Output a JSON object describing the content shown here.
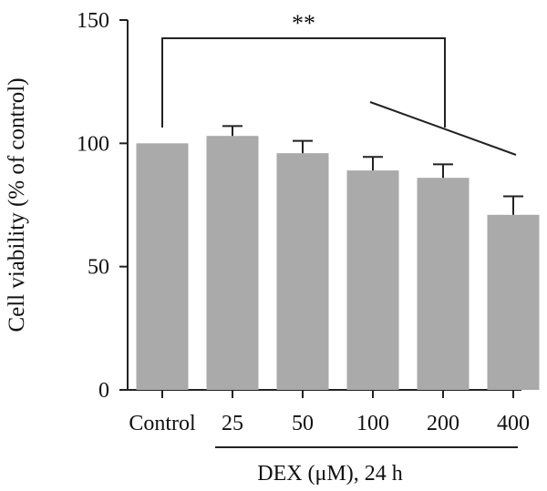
{
  "chart_data": {
    "type": "bar",
    "title": "",
    "ylabel": "Cell viability (% of control)",
    "xgroup_label": "DEX (μM), 24 h",
    "ylim": [
      0,
      150
    ],
    "yticks": [
      "0",
      "50",
      "100",
      "150"
    ],
    "categories": [
      "Control",
      "25",
      "50",
      "100",
      "200",
      "400"
    ],
    "values": [
      100,
      103,
      96,
      89,
      86,
      71
    ],
    "errors": [
      0,
      4,
      5,
      5.5,
      5.5,
      7.5
    ],
    "bar_color": "#aaaaaa",
    "significance": "**",
    "grid": false
  }
}
